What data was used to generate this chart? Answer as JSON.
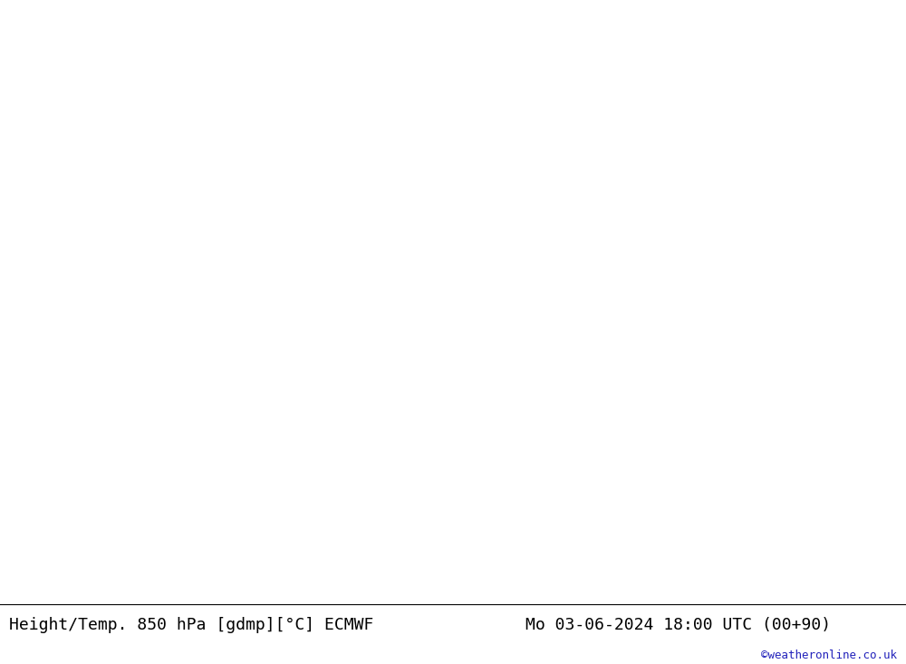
{
  "title_left": "Height/Temp. 850 hPa [gdmp][°C] ECMWF",
  "title_right": "Mo 03-06-2024 18:00 UTC (00+90)",
  "watermark": "©weatheronline.co.uk",
  "bg_color": "#e8e8e8",
  "land_color": "#c8ebc8",
  "sea_color": "#e8e8e8",
  "title_color": "#000000",
  "watermark_color": "#2222bb",
  "title_fontsize": 13,
  "watermark_fontsize": 9,
  "height_color": "#000000",
  "temp_orange": "#ff8c00",
  "temp_red": "#cc0000",
  "temp_magenta": "#cc00cc",
  "temp_cyan": "#00aaaa",
  "temp_green": "#66bb44",
  "temp_teal": "#008888"
}
